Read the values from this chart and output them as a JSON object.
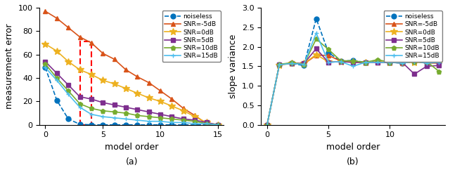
{
  "x_left": [
    0,
    1,
    2,
    3,
    4,
    5,
    6,
    7,
    8,
    9,
    10,
    11,
    12,
    13,
    14,
    15
  ],
  "x_right": [
    0,
    1,
    2,
    3,
    4,
    5,
    6,
    7,
    8,
    9,
    10,
    11,
    12,
    13,
    14
  ],
  "left_ylabel": "measurement error",
  "right_ylabel": "slope variance",
  "xlabel": "model order",
  "legend_labels": [
    "noiseless",
    "SNR=-5dB",
    "SNR=0dB",
    "SNR=5dB",
    "SNR=10dB",
    "SNR=15dB"
  ],
  "left_ylim": [
    0,
    100
  ],
  "right_ylim": [
    0,
    3
  ],
  "left_data": {
    "noiseless": [
      49,
      21,
      5,
      0.5,
      0,
      0,
      0,
      0,
      0,
      0,
      0,
      0,
      0,
      0,
      0,
      0
    ],
    "snr_m5": [
      97,
      91,
      83,
      75,
      70,
      61,
      56,
      47,
      41,
      36,
      29,
      22,
      14,
      8,
      1,
      0
    ],
    "snr_0": [
      69,
      63,
      54,
      47,
      43,
      38,
      35,
      31,
      27,
      23,
      20,
      16,
      12,
      7,
      2,
      0
    ],
    "snr_5": [
      54,
      44,
      34,
      24,
      22,
      19,
      17,
      15,
      13,
      11,
      9,
      7,
      5,
      4,
      2,
      0
    ],
    "snr_10": [
      52,
      40,
      29,
      18,
      14,
      12,
      11,
      10,
      8,
      7,
      6,
      5,
      4,
      3,
      1,
      0
    ],
    "snr_15": [
      49,
      38,
      26,
      15,
      9,
      7,
      6,
      5,
      4,
      3,
      3,
      2,
      2,
      1,
      1,
      0
    ]
  },
  "right_data": {
    "noiseless": [
      0,
      1.55,
      1.57,
      1.52,
      2.72,
      1.85,
      1.63,
      1.65,
      1.6,
      1.64,
      1.6,
      1.58,
      1.62,
      1.6,
      1.6
    ],
    "snr_m5": [
      0,
      1.54,
      1.58,
      1.56,
      1.78,
      1.78,
      1.63,
      1.6,
      1.6,
      1.6,
      1.6,
      1.58,
      1.62,
      1.58,
      1.58
    ],
    "snr_0": [
      0,
      1.53,
      1.57,
      1.57,
      1.8,
      1.61,
      1.62,
      1.62,
      1.59,
      1.62,
      1.6,
      1.6,
      1.6,
      1.6,
      1.6
    ],
    "snr_5": [
      0,
      1.54,
      1.58,
      1.57,
      1.95,
      1.6,
      1.62,
      1.6,
      1.6,
      1.6,
      1.6,
      1.6,
      1.3,
      1.5,
      1.52
    ],
    "snr_10": [
      0,
      1.55,
      1.59,
      1.55,
      2.2,
      1.93,
      1.64,
      1.64,
      1.6,
      1.67,
      1.6,
      1.62,
      1.61,
      1.62,
      1.37
    ],
    "snr_15": [
      0,
      1.54,
      1.57,
      1.55,
      2.35,
      1.6,
      1.62,
      1.5,
      1.6,
      1.6,
      1.6,
      1.58,
      1.62,
      1.58,
      1.6
    ]
  },
  "colors": {
    "noiseless": "#0072BD",
    "snr_m5": "#D95319",
    "snr_0": "#EDB120",
    "snr_5": "#7E2F8E",
    "snr_10": "#77AC30",
    "snr_15": "#4DBEEE"
  },
  "markers": {
    "noiseless": "o",
    "snr_m5": "^",
    "snr_0": "*",
    "snr_5": "s",
    "snr_10": "p",
    "snr_15": "+"
  }
}
